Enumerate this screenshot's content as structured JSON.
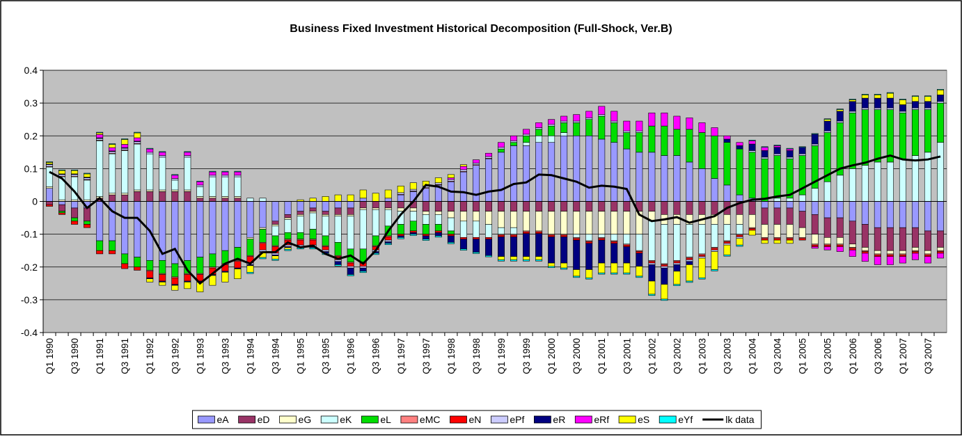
{
  "chart_data": {
    "type": "bar",
    "stacked": true,
    "title": "Business Fixed Investment Historical Decomposition (Full-Shock, Ver.B)",
    "categories": [
      "Q1 1990",
      null,
      "Q3 1990",
      null,
      "Q1 1991",
      null,
      "Q3 1991",
      null,
      "Q1 1992",
      null,
      "Q3 1992",
      null,
      "Q1 1993",
      null,
      "Q3 1993",
      null,
      "Q1 1994",
      null,
      "Q3 1994",
      null,
      "Q1 1995",
      null,
      "Q3 1995",
      null,
      "Q1 1996",
      null,
      "Q3 1996",
      null,
      "Q1 1997",
      null,
      "Q3 1997",
      null,
      "Q1 1998",
      null,
      "Q3 1998",
      null,
      "Q1 1999",
      null,
      "Q3 1999",
      null,
      "Q1 2000",
      null,
      "Q3 2000",
      null,
      "Q1 2001",
      null,
      "Q3 2001",
      null,
      "Q1 2002",
      null,
      "Q3 2002",
      null,
      "Q1 2003",
      null,
      "Q3 2003",
      null,
      "Q1 2004",
      null,
      "Q3 2004",
      null,
      "Q1 2005",
      null,
      "Q3 2005",
      null,
      "Q1 2006",
      null,
      "Q3 2006",
      null,
      "Q1 2007",
      null,
      "Q3 2007",
      null
    ],
    "ylim": [
      -0.4,
      0.4
    ],
    "yticks": [
      -0.4,
      -0.3,
      -0.2,
      -0.1,
      0,
      0.1,
      0.2,
      0.3,
      0.4
    ],
    "grid": true,
    "plot_background": "#c0c0c0",
    "legend": "bottom",
    "series": [
      {
        "name": "eA",
        "color": "#9999ff",
        "values": [
          0.04,
          -0.01,
          -0.02,
          -0.02,
          -0.12,
          -0.12,
          -0.16,
          -0.17,
          -0.18,
          -0.18,
          -0.19,
          -0.18,
          -0.17,
          -0.16,
          -0.15,
          -0.14,
          -0.11,
          -0.08,
          -0.06,
          -0.04,
          -0.03,
          -0.02,
          -0.03,
          -0.02,
          -0.02,
          0.01,
          0.0,
          0.01,
          0.02,
          0.03,
          0.04,
          0.05,
          0.06,
          0.09,
          0.11,
          0.13,
          0.15,
          0.17,
          0.17,
          0.18,
          0.18,
          0.2,
          0.2,
          0.2,
          0.19,
          0.18,
          0.16,
          0.15,
          0.15,
          0.14,
          0.14,
          0.12,
          0.1,
          0.07,
          0.05,
          0.02,
          0.01,
          -0.02,
          -0.02,
          -0.02,
          -0.03,
          -0.04,
          -0.05,
          -0.05,
          -0.06,
          -0.07,
          -0.08,
          -0.08,
          -0.08,
          -0.08,
          -0.09,
          -0.09
        ]
      },
      {
        "name": "eD",
        "color": "#993366",
        "values": [
          -0.01,
          -0.02,
          -0.03,
          -0.04,
          0.01,
          0.02,
          0.02,
          0.03,
          0.03,
          0.03,
          0.03,
          0.03,
          0.01,
          0.01,
          0.01,
          0.01,
          0.0,
          0.0,
          -0.01,
          -0.01,
          -0.01,
          -0.01,
          -0.01,
          -0.02,
          -0.02,
          -0.02,
          -0.02,
          -0.02,
          -0.02,
          -0.02,
          -0.03,
          -0.03,
          -0.03,
          -0.03,
          -0.03,
          -0.03,
          -0.03,
          -0.03,
          -0.03,
          -0.03,
          -0.03,
          -0.03,
          -0.03,
          -0.03,
          -0.03,
          -0.03,
          -0.03,
          -0.03,
          -0.03,
          -0.04,
          -0.04,
          -0.04,
          -0.04,
          -0.04,
          -0.04,
          -0.04,
          -0.04,
          -0.05,
          -0.05,
          -0.05,
          -0.05,
          -0.06,
          -0.06,
          -0.06,
          -0.07,
          -0.07,
          -0.07,
          -0.07,
          -0.07,
          -0.06,
          -0.06,
          -0.05
        ]
      },
      {
        "name": "eG",
        "color": "#ffffcc",
        "values": [
          0.005,
          0.005,
          0.005,
          0.005,
          0.005,
          0.005,
          0.005,
          0.005,
          0.005,
          0.005,
          0.005,
          0.005,
          0.005,
          0.005,
          0.005,
          0.005,
          -0.005,
          -0.005,
          -0.005,
          -0.005,
          -0.005,
          -0.005,
          -0.005,
          -0.005,
          -0.005,
          -0.005,
          -0.005,
          -0.005,
          -0.01,
          -0.01,
          -0.01,
          -0.01,
          -0.02,
          -0.03,
          -0.03,
          -0.04,
          -0.05,
          -0.05,
          -0.06,
          -0.06,
          -0.07,
          -0.07,
          -0.07,
          -0.07,
          -0.07,
          -0.07,
          -0.07,
          -0.07,
          -0.03,
          -0.03,
          -0.03,
          -0.03,
          -0.03,
          -0.03,
          -0.03,
          -0.03,
          -0.04,
          -0.04,
          -0.04,
          -0.04,
          -0.03,
          -0.03,
          -0.02,
          -0.02,
          -0.01,
          -0.01,
          -0.01,
          -0.01,
          -0.01,
          -0.01,
          -0.01,
          -0.01
        ]
      },
      {
        "name": "eK",
        "color": "#ccffff",
        "values": [
          0.06,
          0.07,
          0.07,
          0.06,
          0.17,
          0.12,
          0.13,
          0.14,
          0.11,
          0.1,
          0.03,
          0.1,
          0.03,
          0.06,
          0.06,
          0.06,
          0.01,
          0.01,
          -0.03,
          -0.04,
          -0.05,
          -0.05,
          -0.06,
          -0.08,
          -0.1,
          -0.12,
          -0.08,
          -0.05,
          -0.04,
          -0.03,
          -0.03,
          -0.03,
          -0.04,
          -0.05,
          -0.05,
          -0.04,
          -0.02,
          -0.02,
          0.01,
          0.02,
          0.02,
          0.01,
          -0.01,
          -0.02,
          -0.01,
          -0.02,
          -0.03,
          -0.05,
          -0.12,
          -0.12,
          -0.11,
          -0.1,
          -0.09,
          -0.07,
          -0.05,
          -0.03,
          0.0,
          0.0,
          0.01,
          0.01,
          0.02,
          0.04,
          0.06,
          0.08,
          0.1,
          0.11,
          0.12,
          0.12,
          0.13,
          0.14,
          0.15,
          0.18
        ]
      },
      {
        "name": "eL",
        "color": "#00dd00",
        "values": [
          0.0,
          -0.005,
          -0.01,
          -0.01,
          -0.03,
          -0.03,
          -0.03,
          -0.03,
          -0.03,
          -0.04,
          -0.04,
          -0.04,
          -0.05,
          -0.04,
          -0.04,
          -0.04,
          -0.05,
          -0.04,
          -0.03,
          -0.02,
          -0.02,
          -0.03,
          -0.03,
          -0.04,
          -0.04,
          -0.04,
          -0.03,
          -0.03,
          -0.03,
          -0.03,
          -0.03,
          -0.02,
          -0.01,
          0.0,
          0.0,
          0.0,
          0.01,
          0.01,
          0.02,
          0.02,
          0.03,
          0.03,
          0.04,
          0.05,
          0.07,
          0.06,
          0.05,
          0.06,
          0.08,
          0.09,
          0.08,
          0.1,
          0.11,
          0.13,
          0.13,
          0.14,
          0.14,
          0.13,
          0.13,
          0.12,
          0.12,
          0.13,
          0.15,
          0.16,
          0.17,
          0.17,
          0.16,
          0.16,
          0.14,
          0.14,
          0.13,
          0.12
        ]
      },
      {
        "name": "eMC",
        "color": "#ff8080",
        "values": [
          0.002,
          0.002,
          0.002,
          0.002,
          0.002,
          0.002,
          0.002,
          0.002,
          -0.003,
          -0.003,
          -0.003,
          -0.003,
          -0.003,
          -0.003,
          -0.003,
          -0.003,
          -0.003,
          -0.003,
          -0.003,
          -0.003,
          -0.003,
          -0.003,
          -0.003,
          -0.003,
          -0.003,
          -0.003,
          -0.003,
          -0.003,
          0.002,
          0.002,
          0.002,
          0.002,
          0.002,
          0.002,
          0.002,
          0.002,
          -0.003,
          -0.003,
          -0.003,
          -0.003,
          -0.003,
          -0.003,
          -0.003,
          -0.003,
          -0.003,
          -0.003,
          -0.003,
          -0.003,
          -0.003,
          -0.003,
          -0.003,
          -0.003,
          -0.003,
          -0.003,
          -0.003,
          -0.003,
          -0.003,
          -0.003,
          -0.003,
          -0.003,
          -0.003,
          -0.003,
          -0.003,
          -0.003,
          -0.003,
          -0.003,
          -0.003,
          -0.003,
          -0.003,
          -0.003,
          -0.003,
          -0.003
        ]
      },
      {
        "name": "eN",
        "color": "#ff0000",
        "values": [
          -0.005,
          -0.005,
          -0.01,
          -0.01,
          -0.01,
          -0.01,
          -0.015,
          -0.01,
          -0.02,
          -0.02,
          -0.02,
          -0.02,
          -0.02,
          -0.02,
          -0.02,
          -0.02,
          -0.02,
          -0.02,
          -0.02,
          -0.015,
          -0.015,
          -0.015,
          -0.01,
          -0.01,
          -0.01,
          -0.01,
          -0.01,
          -0.01,
          -0.005,
          -0.005,
          -0.005,
          -0.005,
          -0.005,
          -0.005,
          -0.005,
          -0.005,
          -0.005,
          -0.005,
          -0.005,
          -0.005,
          -0.005,
          -0.005,
          -0.005,
          -0.005,
          -0.005,
          -0.005,
          -0.005,
          -0.005,
          -0.005,
          -0.005,
          -0.005,
          -0.005,
          -0.005,
          -0.005,
          -0.005,
          -0.005,
          -0.005,
          -0.005,
          -0.005,
          -0.005,
          -0.005,
          -0.005,
          -0.005,
          -0.005,
          -0.005,
          -0.005,
          -0.005,
          -0.005,
          -0.005,
          -0.005,
          -0.005,
          -0.005
        ]
      },
      {
        "name": "ePf",
        "color": "#ccccff",
        "values": [
          0.005,
          0.005,
          0.005,
          0.005,
          0.005,
          0.005,
          0.005,
          0.005,
          0.005,
          0.005,
          0.005,
          0.005,
          0.005,
          0.005,
          0.005,
          0.005,
          -0.005,
          -0.005,
          -0.005,
          -0.005,
          -0.005,
          -0.005,
          -0.005,
          -0.005,
          -0.005,
          -0.005,
          -0.005,
          -0.005,
          0.005,
          0.005,
          0.005,
          0.005,
          0.005,
          0.005,
          0.005,
          0.005,
          0.005,
          0.005,
          0.005,
          0.005,
          0.005,
          0.005,
          0.005,
          0.005,
          0.005,
          0.005,
          0.005,
          0.005,
          -0.005,
          -0.005,
          -0.005,
          -0.005,
          -0.005,
          -0.005,
          -0.005,
          -0.005,
          0.005,
          0.005,
          0.005,
          0.005,
          0.005,
          0.005,
          0.005,
          0.005,
          0.005,
          0.005,
          0.005,
          0.005,
          0.005,
          0.005,
          0.005,
          0.005
        ]
      },
      {
        "name": "eR",
        "color": "#000080",
        "values": [
          0.002,
          0.002,
          0.002,
          0.002,
          0.002,
          0.002,
          0.002,
          0.002,
          -0.003,
          -0.003,
          -0.003,
          -0.003,
          -0.003,
          -0.003,
          -0.003,
          -0.003,
          -0.003,
          -0.003,
          -0.003,
          -0.003,
          -0.003,
          -0.003,
          -0.005,
          -0.01,
          -0.02,
          -0.01,
          -0.005,
          -0.005,
          -0.005,
          -0.005,
          -0.01,
          -0.01,
          -0.02,
          -0.03,
          -0.04,
          -0.05,
          -0.06,
          -0.06,
          -0.07,
          -0.07,
          -0.08,
          -0.08,
          -0.09,
          -0.08,
          -0.07,
          -0.06,
          -0.05,
          -0.04,
          -0.05,
          -0.05,
          -0.02,
          -0.01,
          0.0,
          0.0,
          0.01,
          0.01,
          0.02,
          0.02,
          0.02,
          0.02,
          0.02,
          0.03,
          0.03,
          0.03,
          0.03,
          0.03,
          0.03,
          0.03,
          0.02,
          0.02,
          0.02,
          0.02
        ]
      },
      {
        "name": "eRf",
        "color": "#ff00ff",
        "values": [
          0.0,
          0.0,
          0.0,
          0.0,
          0.01,
          0.01,
          0.01,
          0.01,
          0.01,
          0.01,
          0.01,
          0.01,
          0.01,
          0.01,
          0.01,
          0.01,
          0.0,
          0.0,
          0.0,
          0.0,
          0.0,
          0.0,
          0.0,
          0.0,
          0.0,
          0.0,
          0.0,
          0.0,
          0.0,
          0.0,
          0.0,
          0.0,
          0.005,
          0.01,
          0.01,
          0.01,
          0.015,
          0.015,
          0.015,
          0.015,
          0.015,
          0.015,
          0.02,
          0.02,
          0.025,
          0.03,
          0.03,
          0.03,
          0.04,
          0.04,
          0.04,
          0.035,
          0.03,
          0.025,
          0.01,
          0.01,
          0.01,
          0.01,
          0.005,
          0.005,
          0.0,
          -0.005,
          -0.01,
          -0.015,
          -0.02,
          -0.025,
          -0.025,
          -0.025,
          -0.02,
          -0.02,
          -0.02,
          -0.015
        ]
      },
      {
        "name": "eS",
        "color": "#ffff00",
        "values": [
          0.005,
          0.01,
          0.01,
          0.01,
          0.005,
          0.01,
          0.015,
          0.015,
          -0.01,
          -0.01,
          -0.015,
          -0.02,
          -0.03,
          -0.03,
          -0.03,
          -0.03,
          -0.02,
          -0.015,
          -0.01,
          -0.005,
          0.005,
          0.01,
          0.015,
          0.02,
          0.02,
          0.025,
          0.025,
          0.025,
          0.02,
          0.02,
          0.015,
          0.015,
          0.01,
          0.005,
          0.0,
          0.0,
          -0.01,
          -0.01,
          -0.01,
          -0.01,
          -0.01,
          -0.015,
          -0.02,
          -0.025,
          -0.03,
          -0.03,
          -0.03,
          -0.03,
          -0.04,
          -0.045,
          -0.04,
          -0.05,
          -0.06,
          -0.055,
          -0.03,
          -0.02,
          -0.015,
          -0.01,
          -0.01,
          -0.01,
          0.0,
          0.0,
          0.005,
          0.005,
          0.005,
          0.01,
          0.01,
          0.015,
          0.015,
          0.015,
          0.015,
          0.015
        ]
      },
      {
        "name": "eYf",
        "color": "#00ffff",
        "values": [
          0.002,
          0.002,
          0.002,
          0.002,
          0.002,
          0.002,
          0.002,
          0.002,
          0.002,
          0.002,
          0.002,
          0.002,
          0.002,
          0.002,
          0.002,
          0.002,
          -0.004,
          -0.004,
          -0.004,
          -0.004,
          -0.004,
          -0.004,
          -0.004,
          -0.004,
          -0.004,
          -0.004,
          -0.004,
          -0.004,
          -0.004,
          -0.004,
          -0.004,
          -0.004,
          -0.004,
          -0.004,
          -0.004,
          -0.004,
          -0.004,
          -0.004,
          -0.004,
          -0.004,
          -0.004,
          -0.004,
          -0.004,
          -0.004,
          -0.004,
          -0.004,
          -0.004,
          -0.004,
          -0.004,
          -0.004,
          -0.004,
          -0.004,
          -0.004,
          -0.004,
          -0.004,
          -0.004,
          0.002,
          0.002,
          0.002,
          0.002,
          0.002,
          0.002,
          0.002,
          0.002,
          0.002,
          0.002,
          0.002,
          0.002,
          0.002,
          0.002,
          0.002,
          0.002
        ]
      },
      {
        "name": "lk data",
        "color": "#000000",
        "type": "line",
        "values": [
          0.09,
          0.07,
          0.03,
          -0.02,
          0.01,
          -0.03,
          -0.05,
          -0.05,
          -0.09,
          -0.16,
          -0.145,
          -0.21,
          -0.25,
          -0.22,
          -0.19,
          -0.175,
          -0.19,
          -0.155,
          -0.155,
          -0.125,
          -0.14,
          -0.135,
          -0.16,
          -0.175,
          -0.165,
          -0.19,
          -0.15,
          -0.09,
          -0.04,
          0.0,
          0.05,
          0.045,
          0.03,
          0.028,
          0.02,
          0.03,
          0.035,
          0.053,
          0.058,
          0.082,
          0.08,
          0.07,
          0.06,
          0.042,
          0.048,
          0.045,
          0.038,
          -0.04,
          -0.06,
          -0.055,
          -0.048,
          -0.065,
          -0.055,
          -0.045,
          -0.02,
          -0.005,
          0.005,
          0.008,
          0.015,
          0.02,
          0.04,
          0.06,
          0.08,
          0.1,
          0.11,
          0.118,
          0.13,
          0.14,
          0.128,
          0.125,
          0.128,
          0.137
        ]
      }
    ]
  }
}
